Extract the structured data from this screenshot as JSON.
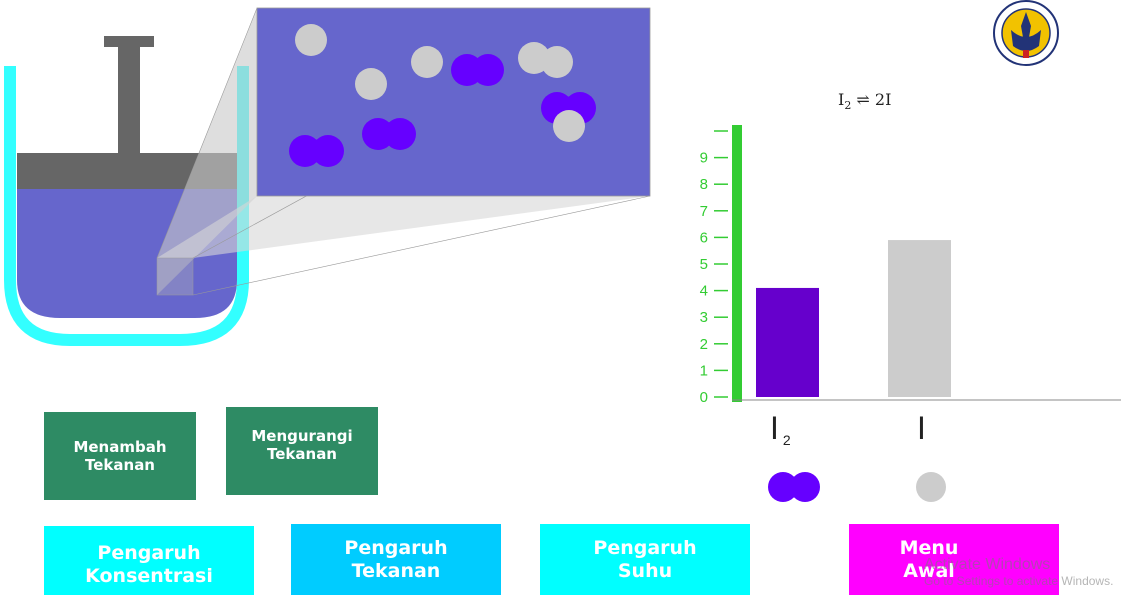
{
  "equation": {
    "left": "I",
    "left_sub": "2",
    "arrow": "⇌",
    "right": "2I"
  },
  "chart_data": {
    "type": "bar",
    "categories": [
      "I2",
      "I"
    ],
    "values": [
      4.1,
      5.9
    ],
    "ylim": [
      0,
      10
    ],
    "yticks": [
      "0",
      "1",
      "2",
      "3",
      "4",
      "5",
      "6",
      "7",
      "8",
      "9"
    ],
    "colors": [
      "#6600cc",
      "#cccccc"
    ],
    "axis_color": "#33cc33",
    "category_labels": [
      {
        "main": "I",
        "sub": "2"
      },
      {
        "main": "I",
        "sub": ""
      }
    ]
  },
  "buttons": {
    "add_pressure": [
      "Menambah",
      "Tekanan"
    ],
    "reduce_pressure": [
      "Mengurangi",
      "Tekanan"
    ],
    "effect_concentration": [
      "Pengaruh",
      "Konsentrasi"
    ],
    "effect_pressure": [
      "Pengaruh",
      "Tekanan"
    ],
    "effect_temperature": [
      "Pengaruh",
      "Suhu"
    ],
    "main_menu": [
      "Menu",
      "Awal"
    ]
  },
  "colors": {
    "press_button": "#2e8b64",
    "nav_cyan": "#00ffff",
    "nav_blue": "#00ccff",
    "nav_magenta": "#ff00ff",
    "gas": "#6666cc",
    "container": "#33ffff",
    "piston": "#666666",
    "i2_molecule": "#6600ff",
    "i_atom": "#cccccc"
  },
  "watermark": {
    "title": "Activate Windows",
    "subtitle": "Go to Settings to activate Windows."
  },
  "logo": {
    "text": "UNIVERSITAS NEGERI YOGYAKARTA"
  }
}
